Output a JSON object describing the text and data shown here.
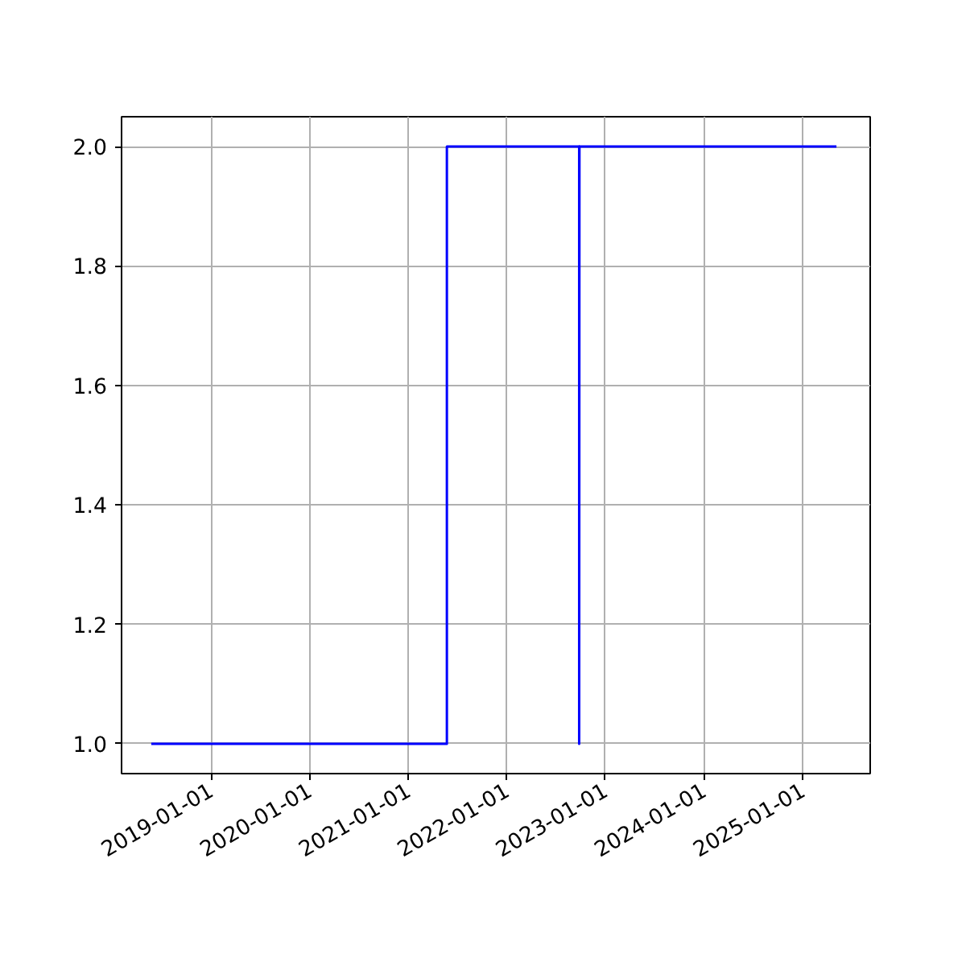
{
  "chart_data": {
    "type": "line",
    "x": [
      "2018-05-25",
      "2021-05-24",
      "2021-05-24",
      "2022-09-26",
      "2022-09-26",
      "2022-09-27",
      "2025-05-06"
    ],
    "series": [
      {
        "color": "#0000ff",
        "values": [
          1.0,
          1.0,
          2.0,
          2.0,
          1.0,
          2.0,
          2.0
        ]
      }
    ],
    "xlim": [
      "2018-02-04",
      "2025-09-08"
    ],
    "xticks": [
      "2019-01-01",
      "2020-01-01",
      "2021-01-01",
      "2022-01-01",
      "2023-01-01",
      "2024-01-01",
      "2025-01-01"
    ],
    "ylim": [
      0.95,
      2.05
    ],
    "yticks": [
      {
        "value": 1.0,
        "label": "1.0"
      },
      {
        "value": 1.2,
        "label": "1.2"
      },
      {
        "value": 1.4,
        "label": "1.4"
      },
      {
        "value": 1.6,
        "label": "1.6"
      },
      {
        "value": 1.8,
        "label": "1.8"
      },
      {
        "value": 2.0,
        "label": "2.0"
      }
    ],
    "grid": true,
    "marker": "none",
    "line_style": "solid"
  }
}
